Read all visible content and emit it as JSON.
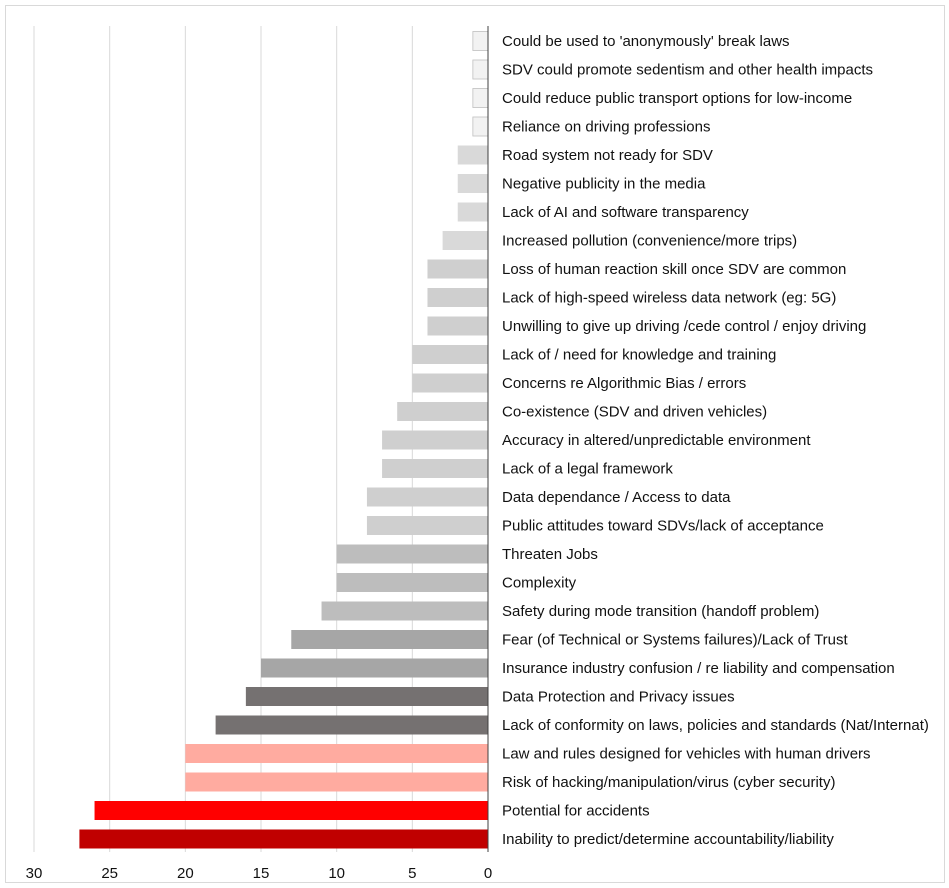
{
  "chart_data": {
    "type": "bar",
    "orientation": "horizontal",
    "x_direction": "reversed",
    "xlim": [
      0,
      30
    ],
    "xticks": [
      "30",
      "25",
      "20",
      "15",
      "10",
      "5",
      "0"
    ],
    "grid": true,
    "categories": [
      "Could be used to 'anonymously' break laws",
      "SDV could promote sedentism and other health impacts",
      "Could reduce public transport options for low-income",
      "Reliance on driving professions",
      "Road system not ready for SDV",
      "Negative publicity in the media",
      "Lack of AI and software transparency",
      "Increased pollution (convenience/more trips)",
      "Loss of human reaction skill once SDV are common",
      "Lack of high-speed wireless data network (eg: 5G)",
      "Unwilling to give up driving /cede control / enjoy driving",
      "Lack of / need for knowledge and training",
      "Concerns re Algorithmic Bias /  errors",
      "Co-existence (SDV and driven vehicles)",
      "Accuracy in altered/unpredictable environment",
      "Lack of a legal framework",
      "Data dependance / Access to data",
      "Public attitudes toward SDVs/lack of acceptance",
      "Threaten Jobs",
      "Complexity",
      "Safety during mode transition (handoff problem)",
      "Fear (of Technical or Systems failures)/Lack of Trust",
      "Insurance industry confusion / re liability and compensation",
      "Data Protection and Privacy issues",
      "Lack of conformity on laws, policies and standards (Nat/Internat)",
      "Law and rules designed for vehicles with human drivers",
      "Risk of hacking/manipulation/virus (cyber security)",
      "Potential for accidents",
      "Inability to predict/determine accountability/liability"
    ],
    "values": [
      1,
      1,
      1,
      1,
      2,
      2,
      2,
      3,
      4,
      4,
      4,
      5,
      5,
      6,
      7,
      7,
      8,
      8,
      10,
      10,
      11,
      13,
      15,
      16,
      18,
      20,
      20,
      26,
      27
    ],
    "colors": [
      "#f2f2f2",
      "#f2f2f2",
      "#f2f2f2",
      "#f2f2f2",
      "#d9d9d9",
      "#d9d9d9",
      "#d9d9d9",
      "#d9d9d9",
      "#cfcfcf",
      "#cfcfcf",
      "#cfcfcf",
      "#cfcfcf",
      "#cfcfcf",
      "#cfcfcf",
      "#cfcfcf",
      "#cfcfcf",
      "#cfcfcf",
      "#cfcfcf",
      "#bdbdbd",
      "#bdbdbd",
      "#bdbdbd",
      "#a6a6a6",
      "#a6a6a6",
      "#757171",
      "#757171",
      "#ffaba0",
      "#ffaba0",
      "#ff0000",
      "#c00000"
    ],
    "bar_edge_color": "#bfbfbf",
    "grid_color": "#d9d9d9",
    "axis_color": "#404040"
  }
}
